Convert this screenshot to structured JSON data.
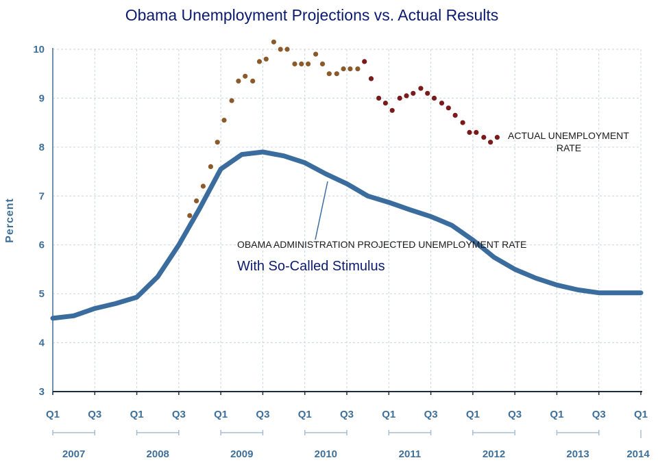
{
  "chart_data": {
    "type": "line",
    "title": "Obama Unemployment Projections vs. Actual Results",
    "ylabel": "Percent",
    "ylim": [
      3,
      10
    ],
    "yticks": [
      "3",
      "4",
      "5",
      "6",
      "7",
      "8",
      "9",
      "10"
    ],
    "x_quarter_labels": [
      "Q1",
      "Q3",
      "Q1",
      "Q3",
      "Q1",
      "Q3",
      "Q1",
      "Q3",
      "Q1",
      "Q3",
      "Q1",
      "Q3",
      "Q1",
      "Q3",
      "Q1"
    ],
    "x_years": [
      "2007",
      "2008",
      "2009",
      "2010",
      "2011",
      "2012",
      "2013",
      "2014"
    ],
    "grid": true,
    "series": [
      {
        "label": "OBAMA ADMINISTRATION PROJECTED UNEMPLOYMENT RATE",
        "sublabel": "With So-Called Stimulus",
        "style": "line",
        "color": "#3b6c9e",
        "x": [
          2007.0,
          2007.25,
          2007.5,
          2007.75,
          2008.0,
          2008.25,
          2008.5,
          2008.75,
          2009.0,
          2009.25,
          2009.5,
          2009.75,
          2010.0,
          2010.25,
          2010.5,
          2010.75,
          2011.0,
          2011.25,
          2011.5,
          2011.75,
          2012.0,
          2012.25,
          2012.5,
          2012.75,
          2013.0,
          2013.25,
          2013.5,
          2013.75,
          2014.0
        ],
        "y": [
          4.5,
          4.55,
          4.7,
          4.8,
          4.93,
          5.35,
          6.0,
          6.75,
          7.55,
          7.85,
          7.9,
          7.82,
          7.68,
          7.45,
          7.25,
          7.0,
          6.87,
          6.72,
          6.58,
          6.4,
          6.1,
          5.75,
          5.5,
          5.32,
          5.18,
          5.08,
          5.02,
          5.02,
          5.02
        ]
      },
      {
        "label": "ACTUAL UNEMPLOYMENT",
        "label2": "RATE",
        "style": "dots",
        "colors": {
          "early": "#8b5a2b",
          "late": "#7a1a1a"
        },
        "x": [
          2008.63,
          2008.71,
          2008.79,
          2008.88,
          2008.96,
          2009.04,
          2009.13,
          2009.21,
          2009.29,
          2009.38,
          2009.46,
          2009.54,
          2009.63,
          2009.71,
          2009.79,
          2009.88,
          2009.96,
          2010.04,
          2010.13,
          2010.21,
          2010.29,
          2010.38,
          2010.46,
          2010.54,
          2010.63,
          2010.71,
          2010.79,
          2010.88,
          2010.96,
          2011.04,
          2011.13,
          2011.21,
          2011.29,
          2011.38,
          2011.46,
          2011.54,
          2011.63,
          2011.71,
          2011.79,
          2011.88,
          2011.96,
          2012.04,
          2012.13,
          2012.21,
          2012.29
        ],
        "y": [
          6.6,
          6.9,
          7.2,
          7.6,
          8.1,
          8.55,
          8.95,
          9.35,
          9.45,
          9.35,
          9.75,
          9.8,
          10.15,
          10.0,
          10.0,
          9.7,
          9.7,
          9.7,
          9.9,
          9.7,
          9.5,
          9.5,
          9.6,
          9.6,
          9.6,
          9.75,
          9.4,
          9.0,
          8.9,
          8.75,
          9.0,
          9.05,
          9.1,
          9.2,
          9.1,
          9.0,
          8.9,
          8.8,
          8.65,
          8.5,
          8.3,
          8.3,
          8.2,
          8.1,
          8.2
        ]
      }
    ]
  }
}
